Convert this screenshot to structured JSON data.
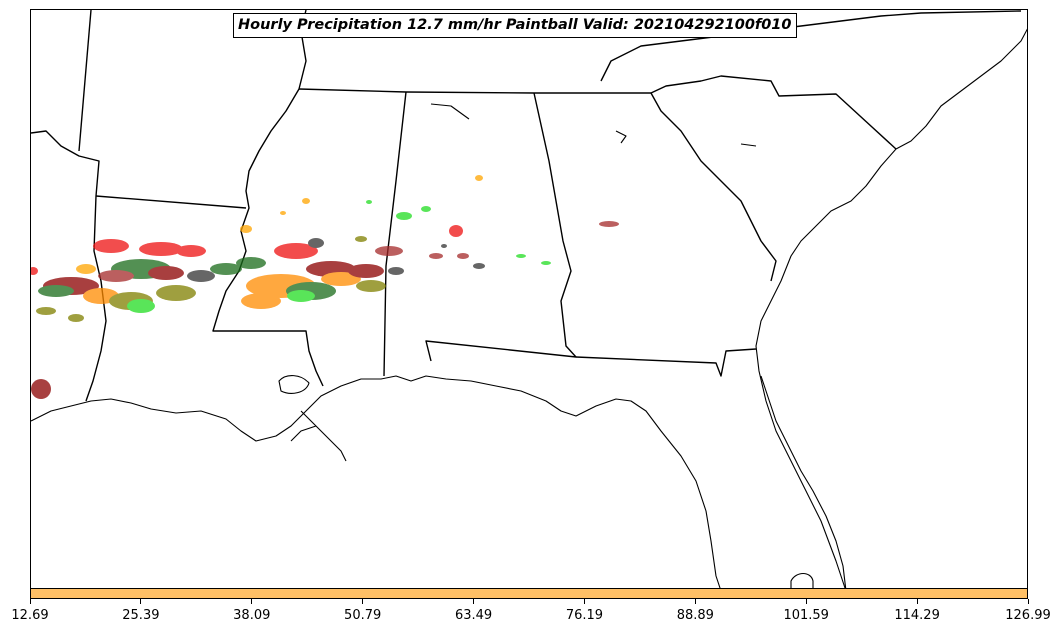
{
  "title": "Hourly Precipitation 12.7 mm/hr Paintball Valid: 202104292100f010",
  "colorbar": {
    "color": "#ffc066",
    "ticks": [
      "12.69",
      "25.39",
      "38.09",
      "50.79",
      "63.49",
      "76.19",
      "88.89",
      "101.59",
      "114.29",
      "126.99"
    ]
  },
  "map": {
    "background": "#ffffff",
    "boundary_color": "#000000"
  },
  "paintball_colors": {
    "red": "#ee1111",
    "darkred": "#8b0000",
    "green": "#22dd22",
    "darkgreen": "#1a6b1a",
    "olive": "#808000",
    "orange": "#ff8c00",
    "gray": "#333333",
    "brown": "#a52a2a",
    "lightorange": "#ffa500"
  }
}
